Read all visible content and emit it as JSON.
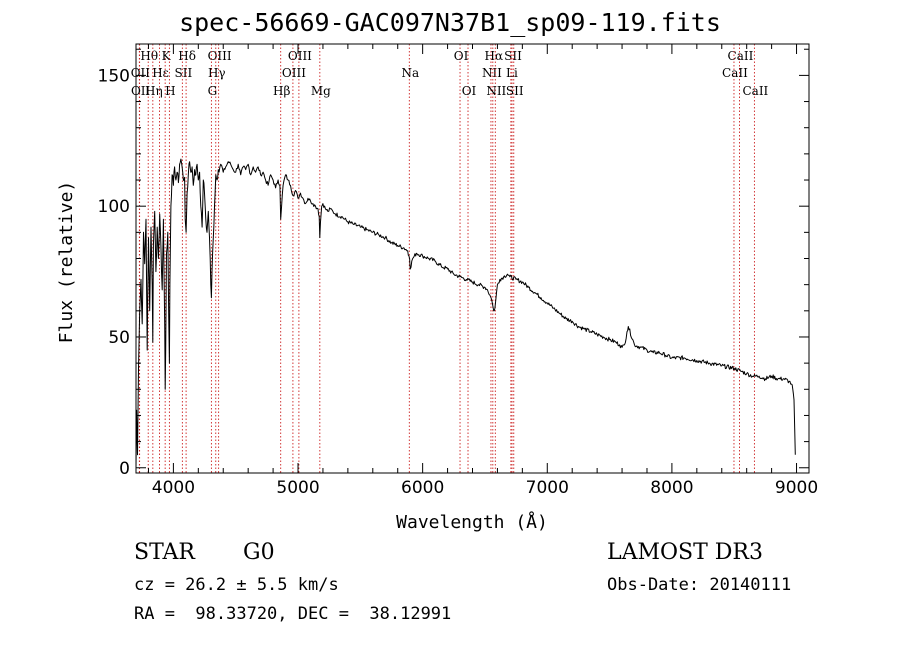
{
  "chart_data": {
    "type": "line",
    "title": "spec-56669-GAC097N37B1_sp09-119.fits",
    "xlabel": "Wavelength (Å)",
    "ylabel": "Flux (relative)",
    "xlim": [
      3700,
      9100
    ],
    "ylim": [
      -2,
      162
    ],
    "xticks": [
      4000,
      5000,
      6000,
      7000,
      8000,
      9000
    ],
    "yticks": [
      0,
      50,
      100,
      150
    ],
    "series": [
      {
        "name": "spectrum",
        "x": [
          3700,
          3705,
          3712,
          3720,
          3730,
          3740,
          3750,
          3760,
          3770,
          3780,
          3790,
          3800,
          3810,
          3820,
          3830,
          3835,
          3840,
          3850,
          3860,
          3870,
          3880,
          3890,
          3900,
          3910,
          3920,
          3930,
          3934,
          3938,
          3945,
          3955,
          3962,
          3968,
          3972,
          3980,
          3990,
          4000,
          4010,
          4020,
          4030,
          4040,
          4050,
          4060,
          4070,
          4080,
          4090,
          4095,
          4102,
          4110,
          4120,
          4130,
          4140,
          4150,
          4160,
          4170,
          4180,
          4190,
          4200,
          4210,
          4220,
          4230,
          4240,
          4250,
          4260,
          4270,
          4280,
          4290,
          4300,
          4305,
          4310,
          4320,
          4330,
          4340,
          4350,
          4360,
          4380,
          4400,
          4420,
          4440,
          4460,
          4480,
          4500,
          4520,
          4540,
          4560,
          4580,
          4600,
          4620,
          4640,
          4660,
          4680,
          4700,
          4720,
          4740,
          4760,
          4780,
          4800,
          4820,
          4840,
          4855,
          4861,
          4868,
          4880,
          4900,
          4920,
          4940,
          4960,
          4980,
          5000,
          5020,
          5040,
          5060,
          5080,
          5100,
          5120,
          5140,
          5160,
          5170,
          5175,
          5180,
          5190,
          5200,
          5220,
          5240,
          5260,
          5280,
          5300,
          5350,
          5400,
          5450,
          5500,
          5550,
          5600,
          5650,
          5700,
          5750,
          5800,
          5850,
          5880,
          5890,
          5895,
          5900,
          5920,
          5950,
          6000,
          6050,
          6100,
          6150,
          6200,
          6250,
          6300,
          6350,
          6400,
          6450,
          6500,
          6520,
          6540,
          6555,
          6563,
          6570,
          6580,
          6600,
          6620,
          6650,
          6680,
          6700,
          6750,
          6800,
          6850,
          6900,
          6950,
          7000,
          7050,
          7100,
          7150,
          7200,
          7250,
          7300,
          7350,
          7400,
          7450,
          7500,
          7550,
          7580,
          7600,
          7620,
          7640,
          7650,
          7700,
          7750,
          7800,
          7850,
          7900,
          7950,
          8000,
          8100,
          8200,
          8300,
          8400,
          8500,
          8550,
          8600,
          8650,
          8700,
          8750,
          8800,
          8850,
          8900,
          8940,
          8960,
          8970,
          8980,
          8985,
          8990
        ],
        "y": [
          0,
          22,
          5,
          38,
          60,
          72,
          55,
          90,
          78,
          95,
          45,
          88,
          60,
          92,
          70,
          48,
          85,
          98,
          75,
          92,
          80,
          97,
          85,
          68,
          95,
          55,
          30,
          45,
          82,
          90,
          58,
          40,
          70,
          100,
          112,
          108,
          115,
          110,
          113,
          109,
          116,
          118,
          115,
          110,
          111,
          95,
          90,
          105,
          112,
          117,
          113,
          115,
          108,
          114,
          112,
          116,
          110,
          113,
          100,
          92,
          110,
          105,
          95,
          90,
          98,
          88,
          70,
          65,
          75,
          88,
          100,
          112,
          110,
          114,
          116,
          113,
          115,
          117,
          116,
          114,
          113,
          116,
          112,
          115,
          114,
          116,
          112,
          115,
          113,
          115,
          112,
          113,
          110,
          108,
          112,
          110,
          107,
          110,
          108,
          95,
          100,
          108,
          112,
          110,
          108,
          104,
          106,
          103,
          105,
          103,
          101,
          103,
          102,
          101,
          100,
          99,
          96,
          88,
          94,
          100,
          101,
          99,
          98,
          99,
          98,
          97,
          96,
          94,
          93,
          92,
          91,
          90,
          89,
          88,
          86,
          85,
          84,
          83,
          81,
          80,
          76,
          80,
          82,
          81,
          80,
          79,
          77,
          76,
          74,
          73,
          72,
          71,
          70,
          69,
          68,
          66,
          64,
          62,
          60,
          61,
          70,
          72,
          73,
          74,
          73,
          72,
          71,
          69,
          67,
          65,
          63,
          61,
          59,
          57,
          56,
          54,
          53,
          52,
          51,
          50,
          49,
          48,
          47,
          46,
          47,
          52,
          54,
          47,
          46,
          45,
          44,
          44,
          43,
          42,
          42,
          41,
          40,
          39,
          38,
          37,
          36,
          35,
          35,
          34,
          35,
          34,
          34,
          33,
          32,
          30,
          26,
          15,
          5
        ]
      }
    ],
    "spectral_lines": [
      {
        "name": "Hθ",
        "wl": 3798,
        "row": 0
      },
      {
        "name": "OII",
        "wl": 3727,
        "row": 1
      },
      {
        "name": "OII",
        "wl": 3729,
        "row": 2
      },
      {
        "name": "Hε",
        "wl": 3889,
        "row": 1
      },
      {
        "name": "Hη",
        "wl": 3835,
        "row": 2
      },
      {
        "name": "K",
        "wl": 3934,
        "row": 0
      },
      {
        "name": "H",
        "wl": 3968,
        "row": 2
      },
      {
        "name": "SII",
        "wl": 4072,
        "row": 1
      },
      {
        "name": "Hδ",
        "wl": 4102,
        "row": 0
      },
      {
        "name": "OIII",
        "wl": 4363,
        "row": 0
      },
      {
        "name": "Hγ",
        "wl": 4340,
        "row": 1
      },
      {
        "name": "G",
        "wl": 4305,
        "row": 2
      },
      {
        "name": "Hβ",
        "wl": 4861,
        "row": 2
      },
      {
        "name": "OIII",
        "wl": 5007,
        "row": 0
      },
      {
        "name": "OIII",
        "wl": 4959,
        "row": 1
      },
      {
        "name": "Mg",
        "wl": 5175,
        "row": 2
      },
      {
        "name": "Na",
        "wl": 5893,
        "row": 1
      },
      {
        "name": "OI",
        "wl": 6300,
        "row": 0
      },
      {
        "name": "OI",
        "wl": 6364,
        "row": 2
      },
      {
        "name": "Hα",
        "wl": 6563,
        "row": 0
      },
      {
        "name": "NII",
        "wl": 6548,
        "row": 1
      },
      {
        "name": "NII",
        "wl": 6583,
        "row": 2
      },
      {
        "name": "SII",
        "wl": 6717,
        "row": 0
      },
      {
        "name": "Li",
        "wl": 6708,
        "row": 1
      },
      {
        "name": "SII",
        "wl": 6731,
        "row": 2
      },
      {
        "name": "CaII",
        "wl": 8542,
        "row": 0
      },
      {
        "name": "CaII",
        "wl": 8498,
        "row": 1
      },
      {
        "name": "CaII",
        "wl": 8662,
        "row": 2
      }
    ]
  },
  "info": {
    "class": "STAR",
    "subclass": "G0",
    "survey": "LAMOST DR3",
    "cz": "cz = 26.2 ± 5.5 km/s",
    "obsdate": "Obs-Date: 20140111",
    "radec": "RA =  98.33720, DEC =  38.12991"
  },
  "colors": {
    "axis": "#000000",
    "spectrum": "#000000",
    "line_marker": "#cc2222"
  }
}
